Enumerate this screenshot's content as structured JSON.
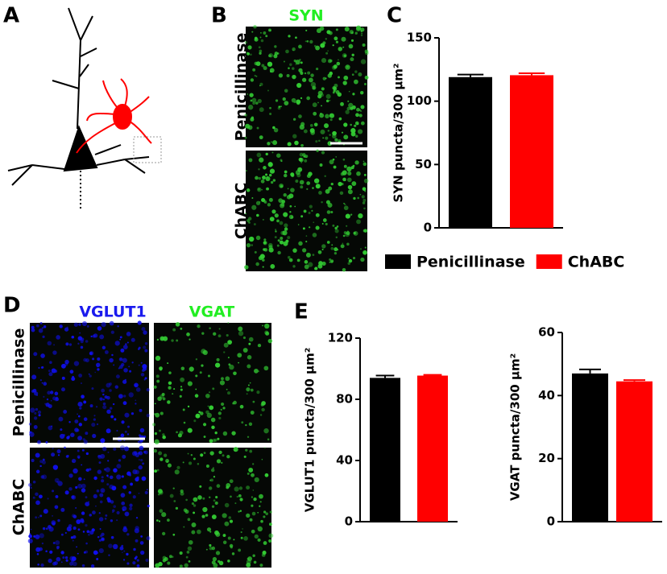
{
  "panel_labels": [
    "A",
    "B",
    "C",
    "D",
    "E"
  ],
  "panel_b": {
    "stain": "SYN",
    "rows": [
      "Penicillinase",
      "ChABC"
    ]
  },
  "panel_d": {
    "stains": [
      "VGLUT1",
      "VGAT"
    ],
    "rows": [
      "Penicillinase",
      "ChABC"
    ]
  },
  "chart_data": [
    {
      "type": "bar",
      "ylabel": "SYN puncta/300 µm²",
      "categories": [
        "Penicillinase",
        "ChABC"
      ],
      "values": [
        119,
        120.5
      ],
      "errors": [
        2,
        1.5
      ],
      "colors": [
        "#000000",
        "#ff0000"
      ],
      "ylim": [
        0,
        150
      ],
      "yticks": [
        0,
        50,
        100,
        150
      ]
    },
    {
      "type": "bar",
      "ylabel": "VGLUT1 puncta/300 µm²",
      "categories": [
        null,
        null
      ],
      "values": [
        94,
        95.5
      ],
      "errors": [
        1.5,
        0.5
      ],
      "colors": [
        "#000000",
        "#ff0000"
      ],
      "ylim": [
        0,
        120
      ],
      "yticks": [
        0,
        40,
        80,
        120
      ]
    },
    {
      "type": "bar",
      "ylabel": "VGAT puncta/300 µm²",
      "categories": [
        null,
        null
      ],
      "values": [
        47,
        44.5
      ],
      "errors": [
        1.3,
        0.4
      ],
      "colors": [
        "#000000",
        "#ff0000"
      ],
      "ylim": [
        0,
        60
      ],
      "yticks": [
        0,
        20,
        40,
        60
      ]
    }
  ]
}
